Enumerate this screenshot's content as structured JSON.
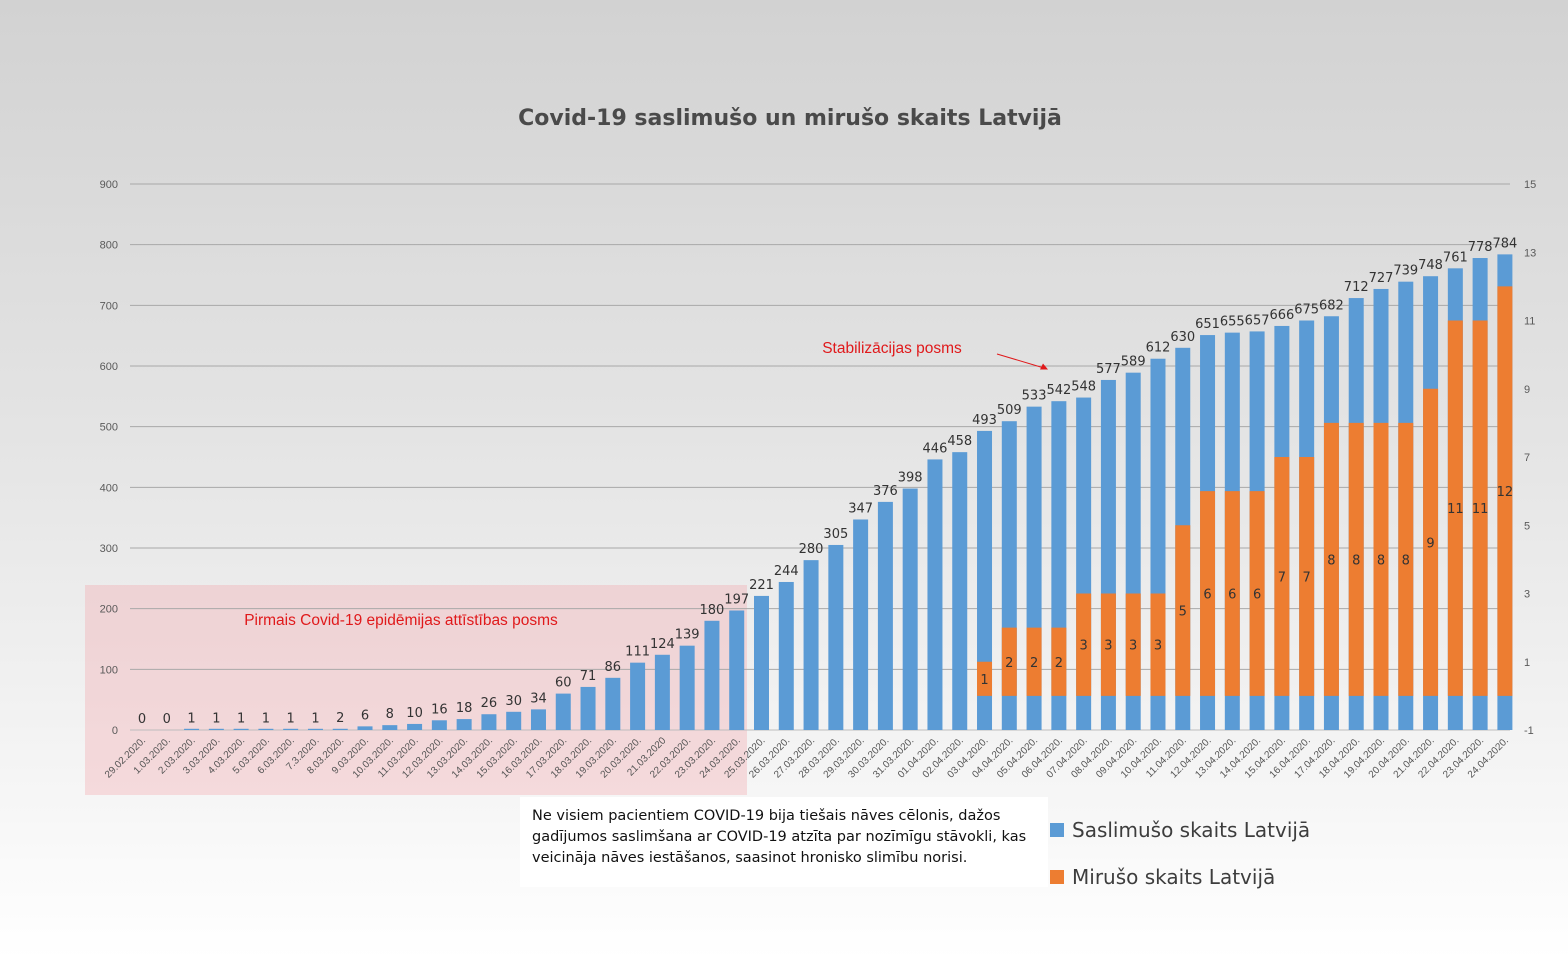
{
  "chart_data": {
    "type": "bar",
    "title": "Covid-19 saslimušo un mirušo skaits Latvijā",
    "left_axis": {
      "min": 0,
      "max": 900,
      "step": 100,
      "ticks": [
        "0",
        "100",
        "200",
        "300",
        "400",
        "500",
        "600",
        "700",
        "800",
        "900"
      ]
    },
    "right_axis": {
      "min": -1,
      "max": 15,
      "ticks": [
        "-1",
        "1",
        "3",
        "5",
        "7",
        "9",
        "11",
        "13",
        "15"
      ]
    },
    "grid": true,
    "legend_position": "bottom-right",
    "categories": [
      "29.02.2020.",
      "1.03.2020.",
      "2.03.2020.",
      "3.03.2020.",
      "4.03.2020.",
      "5.03.2020.",
      "6.03.2020.",
      "7.3.2020.",
      "8.03.2020.",
      "9.03.2020.",
      "10.03.2020.",
      "11.03.2020.",
      "12.03.2020.",
      "13.03.2020.",
      "14.03.2020.",
      "15.03.2020.",
      "16.03.2020.",
      "17.03.2020.",
      "18.03.2020.",
      "19.03.2020.",
      "20.03.2020.",
      "21.03.2020",
      "22.03.2020.",
      "23.03.2020.",
      "24.03.2020.",
      "25.03.2020.",
      "26.03.2020.",
      "27.03.2020.",
      "28.03.2020.",
      "29.03.2020.",
      "30.03.2020.",
      "31.03.2020.",
      "01.04.2020.",
      "02.04.2020.",
      "03.04.2020.",
      "04.04.2020.",
      "05.04.2020.",
      "06.04.2020.",
      "07.04.2020.",
      "08.04.2020.",
      "09.04.2020.",
      "10.04.2020.",
      "11.04.2020.",
      "12.04.2020.",
      "13.04.2020.",
      "14.04.2020.",
      "15.04.2020.",
      "16.04.2020.",
      "17.04.2020.",
      "18.04.2020.",
      "19.04.2020.",
      "20.04.2020.",
      "21.04.2020.",
      "22.04.2020.",
      "23.04.2020.",
      "24.04.2020."
    ],
    "series": [
      {
        "name": "Saslimušo skaits Latvijā",
        "axis": "left",
        "color": "#5b9bd5",
        "values": [
          0,
          0,
          1,
          1,
          1,
          1,
          1,
          1,
          2,
          6,
          8,
          10,
          16,
          18,
          26,
          30,
          34,
          60,
          71,
          86,
          111,
          124,
          139,
          180,
          197,
          221,
          244,
          280,
          305,
          347,
          376,
          398,
          446,
          458,
          493,
          509,
          533,
          542,
          548,
          577,
          589,
          612,
          630,
          651,
          655,
          657,
          666,
          675,
          682,
          712,
          727,
          739,
          748,
          761,
          778,
          784
        ]
      },
      {
        "name": "Mirušo skaits Latvijā",
        "axis": "right",
        "color": "#ed7d31",
        "values": [
          null,
          null,
          null,
          null,
          null,
          null,
          null,
          null,
          null,
          null,
          null,
          null,
          null,
          null,
          null,
          null,
          null,
          null,
          null,
          null,
          null,
          null,
          null,
          null,
          null,
          null,
          null,
          null,
          null,
          null,
          null,
          null,
          null,
          null,
          1,
          2,
          2,
          2,
          3,
          3,
          3,
          3,
          5,
          6,
          6,
          6,
          7,
          7,
          8,
          8,
          8,
          8,
          9,
          11,
          11,
          12
        ]
      }
    ],
    "annotations": {
      "phase1": "Pirmais Covid-19 epidēmijas attīstības posms",
      "phase2": "Stabilizācijas posms"
    }
  },
  "note": "Ne visiem pacientiem COVID-19 bija tiešais nāves cēlonis, dažos gadījumos saslimšana ar COVID-19 atzīta par nozīmīgu stāvokli, kas veicināja nāves iestāšanos, saasinot hronisko slimību norisi.",
  "legend": [
    {
      "label": "Saslimušo skaits Latvijā",
      "color": "#5b9bd5"
    },
    {
      "label": "Mirušo skaits Latvijā",
      "color": "#ed7d31"
    }
  ]
}
